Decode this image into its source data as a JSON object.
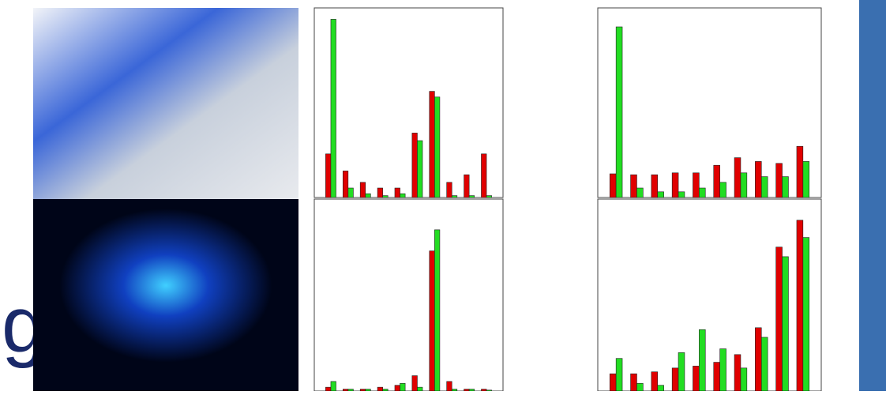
{
  "slide": {
    "text": "g"
  },
  "chart_data": [
    {
      "type": "bar",
      "categories": [
        null,
        null,
        null,
        null,
        null,
        null,
        null,
        null,
        null,
        null
      ],
      "ylim": [
        0,
        100
      ],
      "series": [
        {
          "color": "#e00000",
          "values": [
            23,
            14,
            8,
            5,
            5,
            34,
            56,
            8,
            12,
            23
          ]
        },
        {
          "color": "#22dd22",
          "values": [
            94,
            5,
            2,
            1,
            2,
            30,
            53,
            1,
            1,
            1
          ]
        }
      ]
    },
    {
      "type": "bar",
      "categories": [
        null,
        null,
        null,
        null,
        null,
        null,
        null,
        null,
        null,
        null
      ],
      "ylim": [
        0,
        100
      ],
      "series": [
        {
          "color": "#e00000",
          "values": [
            12.5,
            12,
            12,
            13,
            13,
            17,
            21,
            19,
            18,
            27
          ]
        },
        {
          "color": "#22dd22",
          "values": [
            90,
            5,
            3,
            3,
            5,
            8,
            13,
            11,
            11,
            19
          ]
        }
      ]
    },
    {
      "type": "bar",
      "categories": [
        null,
        null,
        null,
        null,
        null,
        null,
        null,
        null,
        null,
        null
      ],
      "ylim": [
        0,
        100
      ],
      "series": [
        {
          "color": "#e00000",
          "values": [
            2,
            1,
            1,
            2,
            3,
            8,
            73,
            5,
            1,
            1
          ]
        },
        {
          "color": "#22dd22",
          "values": [
            5,
            1,
            1,
            1,
            4,
            2,
            84,
            1,
            1,
            0.5
          ]
        }
      ]
    },
    {
      "type": "bar",
      "categories": [
        null,
        null,
        null,
        null,
        null,
        null,
        null,
        null,
        null,
        null
      ],
      "ylim": [
        0,
        100
      ],
      "series": [
        {
          "color": "#e00000",
          "values": [
            9,
            9,
            10,
            12,
            13,
            15,
            19,
            33,
            75,
            89
          ]
        },
        {
          "color": "#22dd22",
          "values": [
            17,
            4,
            3,
            20,
            32,
            22,
            12,
            28,
            70,
            80
          ]
        }
      ]
    }
  ]
}
